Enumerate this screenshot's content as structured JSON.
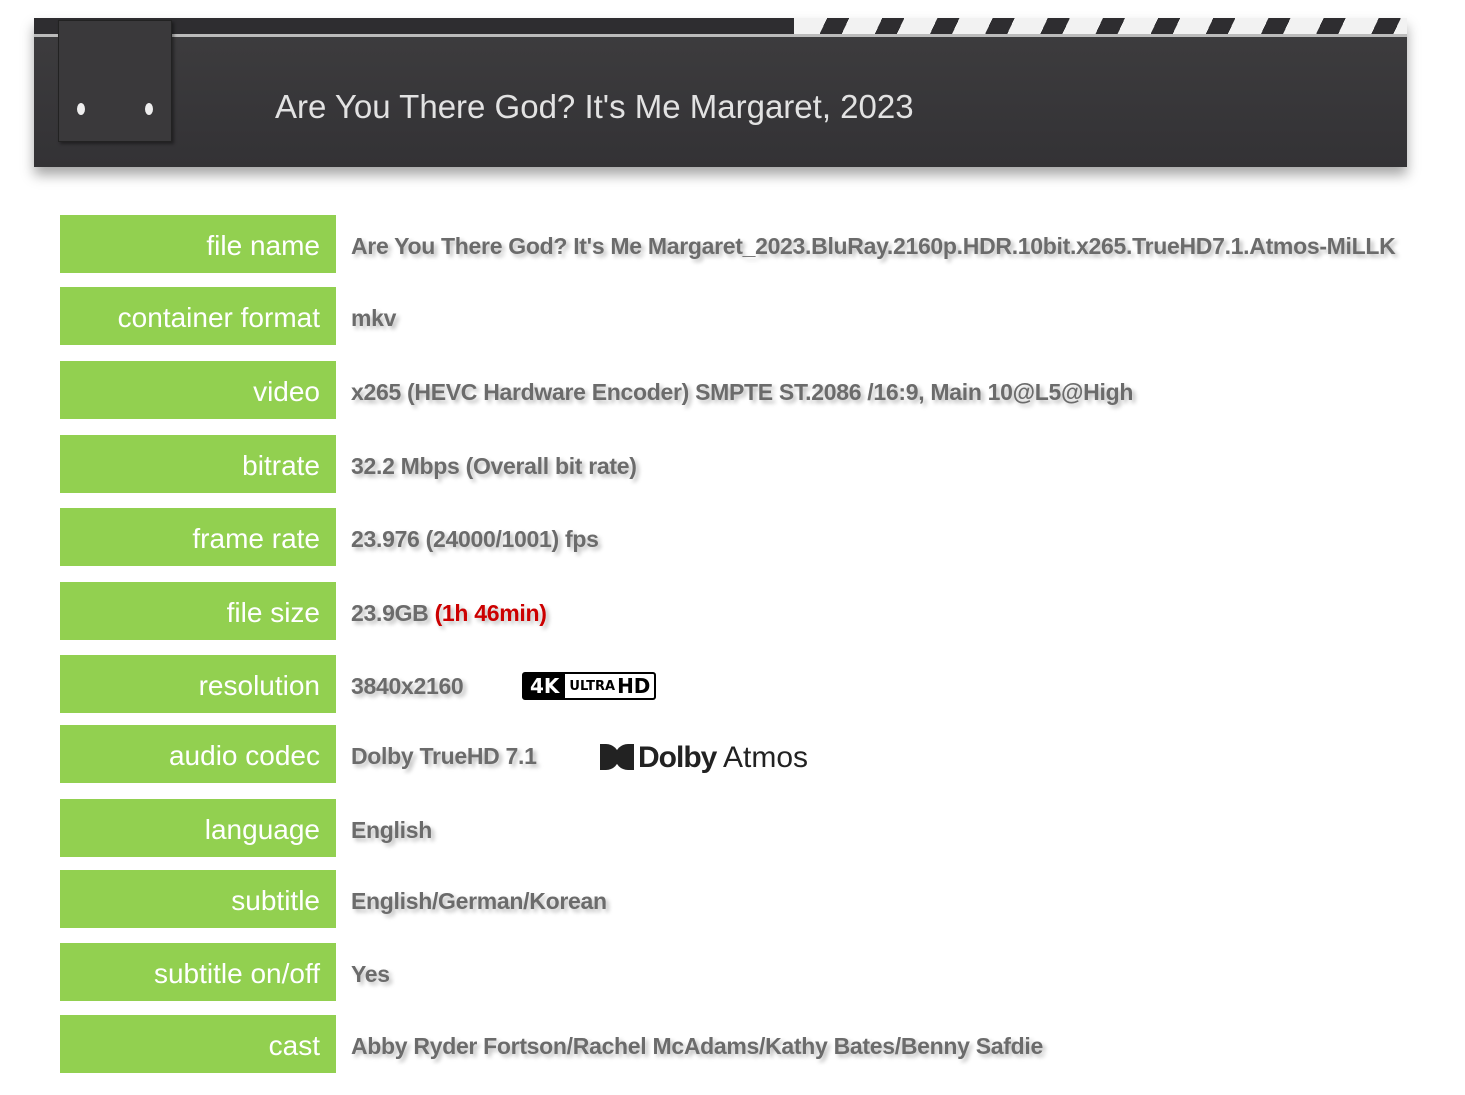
{
  "header": {
    "title": "Are You There God? It's Me Margaret, 2023"
  },
  "rows": [
    {
      "label": "file name",
      "value": "Are You There God? It's Me Margaret_2023.BluRay.2160p.HDR.10bit.x265.TrueHD7.1.Atmos-MiLLK"
    },
    {
      "label": "container format",
      "value": "mkv"
    },
    {
      "label": "video",
      "value": "x265 (HEVC Hardware Encoder) SMPTE ST.2086 /16:9, Main 10@L5@High"
    },
    {
      "label": "bitrate",
      "value": "32.2 Mbps (Overall bit rate)"
    },
    {
      "label": "frame rate",
      "value": "23.976 (24000/1001) fps"
    },
    {
      "label": "file size",
      "value": "23.9GB",
      "extra": "(1h 46min)"
    },
    {
      "label": "resolution",
      "value": "3840x2160",
      "logo4k": {
        "k": "4K",
        "ultra": "ULTRA",
        "hd": "HD"
      }
    },
    {
      "label": "audio codec",
      "value": "Dolby TrueHD 7.1",
      "dolby": {
        "brand": "Dolby",
        "product": "Atmos"
      }
    },
    {
      "label": "language",
      "value": "English"
    },
    {
      "label": "subtitle",
      "value": "English/German/Korean"
    },
    {
      "label": "subtitle on/off",
      "value": "Yes"
    },
    {
      "label": "cast",
      "value": "Abby Ryder Fortson/Rachel McAdams/Kathy Bates/Benny Safdie"
    }
  ]
}
